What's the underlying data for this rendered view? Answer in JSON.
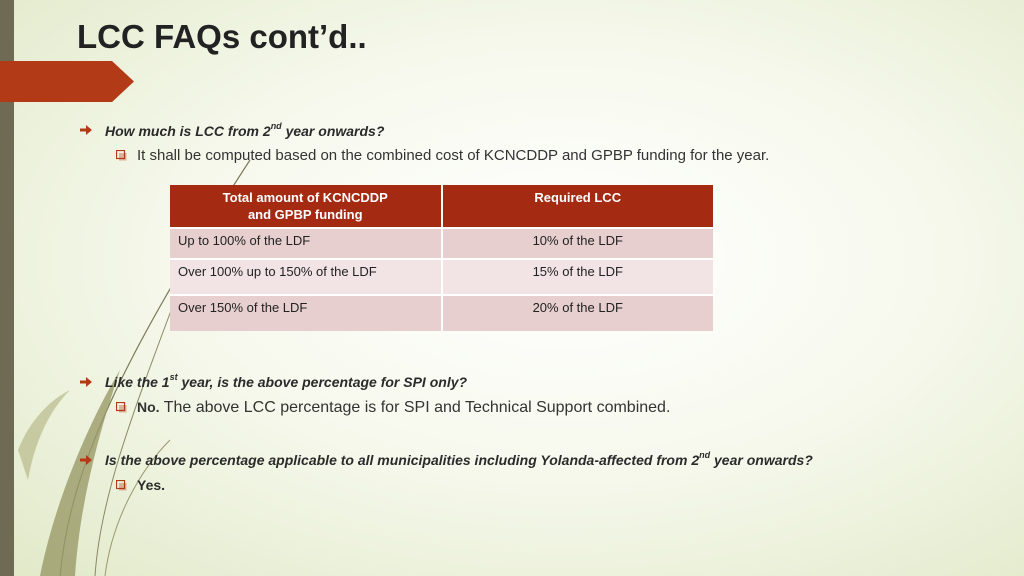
{
  "slide": {
    "title": "LCC FAQs cont’d..",
    "accent_color": "#b23a17"
  },
  "faq1": {
    "question_pre": "How much is LCC from 2",
    "question_sup": "nd",
    "question_post": " year onwards?",
    "answer": "It shall be computed based on the combined cost of KCNCDDP and GPBP funding for the year."
  },
  "table": {
    "headers": [
      "Total amount of KCNCDDP and GPBP funding",
      "Required LCC"
    ],
    "header_line1": "Total amount of KCNCDDP",
    "header_line2": "and GPBP funding",
    "rows": [
      {
        "funding": "Up to 100% of the LDF",
        "lcc": "10% of the LDF"
      },
      {
        "funding": "Over 100% up to 150% of the LDF",
        "lcc": "15% of the LDF"
      },
      {
        "funding": "Over 150% of the LDF",
        "lcc": "20% of the LDF"
      }
    ]
  },
  "faq2": {
    "question_pre": "Like the 1",
    "question_sup": "st",
    "question_post": " year, is the above percentage for SPI only?",
    "answer_bold": "No.",
    "answer_rest": " The above LCC percentage is for SPI and Technical Support combined."
  },
  "faq3": {
    "question_pre": "Is the above percentage applicable to all municipalities including Yolanda-affected from 2",
    "question_sup": "nd",
    "question_post": " year onwards?",
    "answer_bold": "Yes."
  },
  "icons": {
    "bullet": "arrow-bullet-icon",
    "sub_bullet": "checkbox-bullet-icon"
  }
}
